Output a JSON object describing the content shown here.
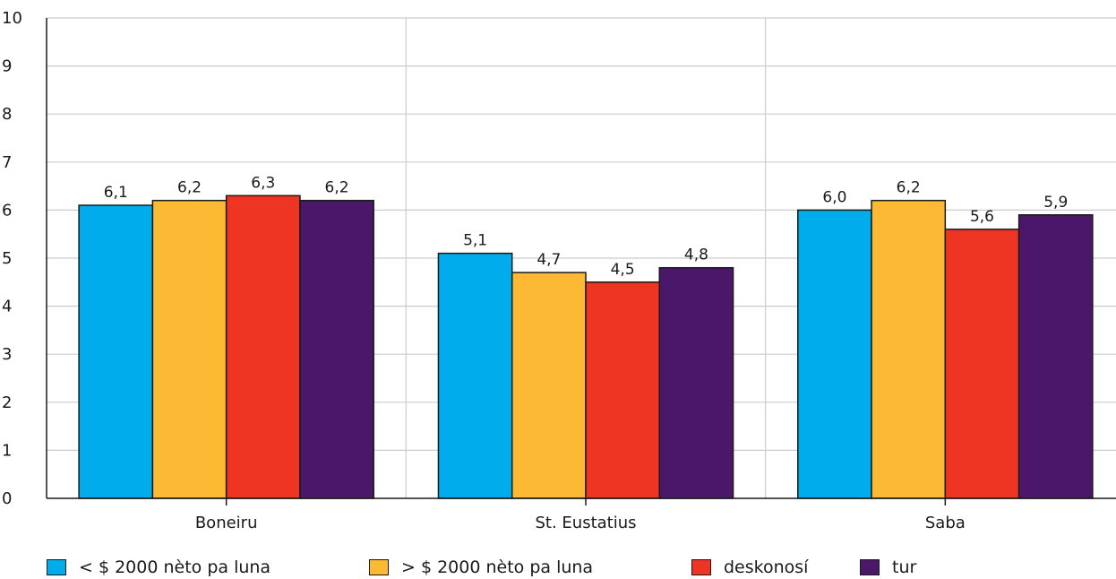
{
  "chart_data": {
    "type": "bar",
    "categories": [
      "Boneiru",
      "St. Eustatius",
      "Saba"
    ],
    "series": [
      {
        "name": "< $ 2000 nèto pa luna",
        "color": "#00acec",
        "values": [
          6.1,
          5.1,
          6.0
        ],
        "labels": [
          "6,1",
          "5,1",
          "6,0"
        ]
      },
      {
        "name": "> $ 2000 nèto pa luna",
        "color": "#fbb934",
        "values": [
          6.2,
          4.7,
          6.2
        ],
        "labels": [
          "6,2",
          "4,7",
          "6,2"
        ]
      },
      {
        "name": "deskonosí",
        "color": "#ee3524",
        "values": [
          6.3,
          4.5,
          5.6
        ],
        "labels": [
          "6,3",
          "4,5",
          "5,6"
        ]
      },
      {
        "name": "tur",
        "color": "#4a176a",
        "values": [
          6.2,
          4.8,
          5.9
        ],
        "labels": [
          "6,2",
          "4,8",
          "5,9"
        ]
      }
    ],
    "ylim": [
      0,
      10
    ],
    "yticks": [
      "0",
      "1",
      "2",
      "3",
      "4",
      "5",
      "6",
      "7",
      "8",
      "9",
      "10"
    ],
    "grid": true,
    "legend_position": "bottom",
    "title": "",
    "xlabel": "",
    "ylabel": ""
  }
}
